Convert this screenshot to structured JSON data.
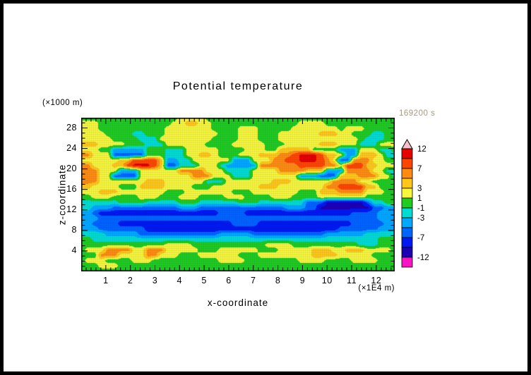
{
  "frame": {
    "border_color": "#000000",
    "page_background": "#ffffff"
  },
  "chart_data": {
    "type": "heatmap",
    "title": "Potential temperature",
    "xlabel": "x-coordinate",
    "ylabel": "z-coordinate",
    "x_units_label": "(×1E4 m)",
    "z_units_label": "(×1000 m)",
    "time_label": "169200 s",
    "time_label_color": "#a39a7d",
    "x_range": [
      0,
      12.75
    ],
    "z_range": [
      0,
      30
    ],
    "x_ticks": [
      1,
      2,
      3,
      4,
      5,
      6,
      7,
      8,
      9,
      10,
      11,
      12
    ],
    "z_ticks": [
      4,
      8,
      12,
      16,
      20,
      24,
      28
    ],
    "x_minor_step": 0.2,
    "z_minor_step": 1,
    "levels": [
      -12,
      -10,
      -7,
      -5,
      -3,
      -1,
      1,
      3,
      5,
      7,
      10,
      12
    ],
    "band_colors": [
      "#fb14c3",
      "#1e00b4",
      "#0019f0",
      "#0064ff",
      "#00a8ff",
      "#00dcd2",
      "#20cc20",
      "#f7f73c",
      "#ffc819",
      "#ff8c0f",
      "#ff4600",
      "#e60000",
      "#f6bec8"
    ],
    "colorbar_labels": [
      12,
      7,
      3,
      1,
      -1,
      -3,
      -7,
      -12
    ],
    "legend_position": "right",
    "grid": {
      "description": "Potential temperature perturbation field, run-length encoded rows from z=30 (top) down to z=0, 48 columns spanning x=0..12.75 (x1E4 m). Palette chars map to band-center values.",
      "palette": {
        "m": -13,
        "d": -10.8,
        "b": -8.3,
        "B": -5.9,
        "l": -3.9,
        "c": -1.9,
        "g": 0,
        "y": 2,
        "Y": 3.9,
        "o": 5.9,
        "r": 8.3,
        "R": 10.8,
        "p": 13
      },
      "rows_rle_top_to_bottom": [
        "15g 4y 29g",
        "3y 11g 2y 2Y 2y 13g 4y 11g",
        "3y 10g 7y 4g 3y 5g 7y 1g 3y 5g",
        "4y 4g 2c 3g 8y 3g 3y 3g 6y 3Y 2y 3g 2c 2g",
        "5y 4g 3c 8y 4g 3y 3g 12y 1g 3c 2g",
        "3Y 4y 3g 3c 6y 4g 5y 3g 5y 3Y 3y 3c 3y",
        "3y 2g 5l 3g 3c 5y 4g 3y 2g 5Y 4g 3l 3y 2c 1g",
        "2o 3y 5B 3g 3c 2y 2Y 1y 3g 3y 3Y 2o 1r 3R 1r 2Y 1y 2l 3Y 1y 2c",
        "6y 2Y 4r 1Y 2l 2c 6y 3l 3y 2o 2r 3R 1r 1o 1y 2B 3o 2y 2g",
        "2o 3y 2Y 1r 3R 1r 1Y 2B 3c 3y 1c 5l 6o 4r 2o 1y 3r 2Y 3y",
        "3o 3y 3l 6y 4o 3y 4c 4y 4o 3Y 3l 4o 2y 2c",
        "3o 2y 4B 8y 3o 3y 3c 7y 3l 3B 3Y 3o 2y 1c",
        "3o 7y 3Y 6y 3c 7y 3Y 6y 4o 2y 4g",
        "2Y 4y 3g 4Y 4y 3g 7y 3Y 7y 2o 4r 2Y 3g",
        "3y 3Y 7y 3g 7y 3g 7y 3g 3Y 4o 3y 2g",
        "2g 3y 4g 3y 3g 3y 4g 3y 4g 3y 4g 7y 5g",
        "6c 4g 5c 3g 6c 3g 7c 3B 6d 1B 2c 2g",
        "2c 3l 10B 3l 13B 3l 2B 8d 2B 2l",
        "2l 1B 18b 4B 16b 4B 3l",
        "3l 42B 3l",
        "2l 4B 17b 4B 14b 5B 2l",
        "3l 7B 29b 6B 3l",
        "4c 5l 12B 5l 11B 6l 5c",
        "2g 43c 3g",
        "13g 4y 11g 4y 10g 3c 3g",
        "1g 3y 4o 2y 3o 5y 3g 6y 3g 5y 3Y 2y 3Y 4y 1g",
        "3g 3o 4y 2o 3y 3g 6y 3g 8y 4Y 5y 4g",
        "1g 3y 4g 3y 10g 4y 8g 4y 4g 4y 3g",
        "3g 3y 42g",
        "48g"
      ]
    }
  }
}
